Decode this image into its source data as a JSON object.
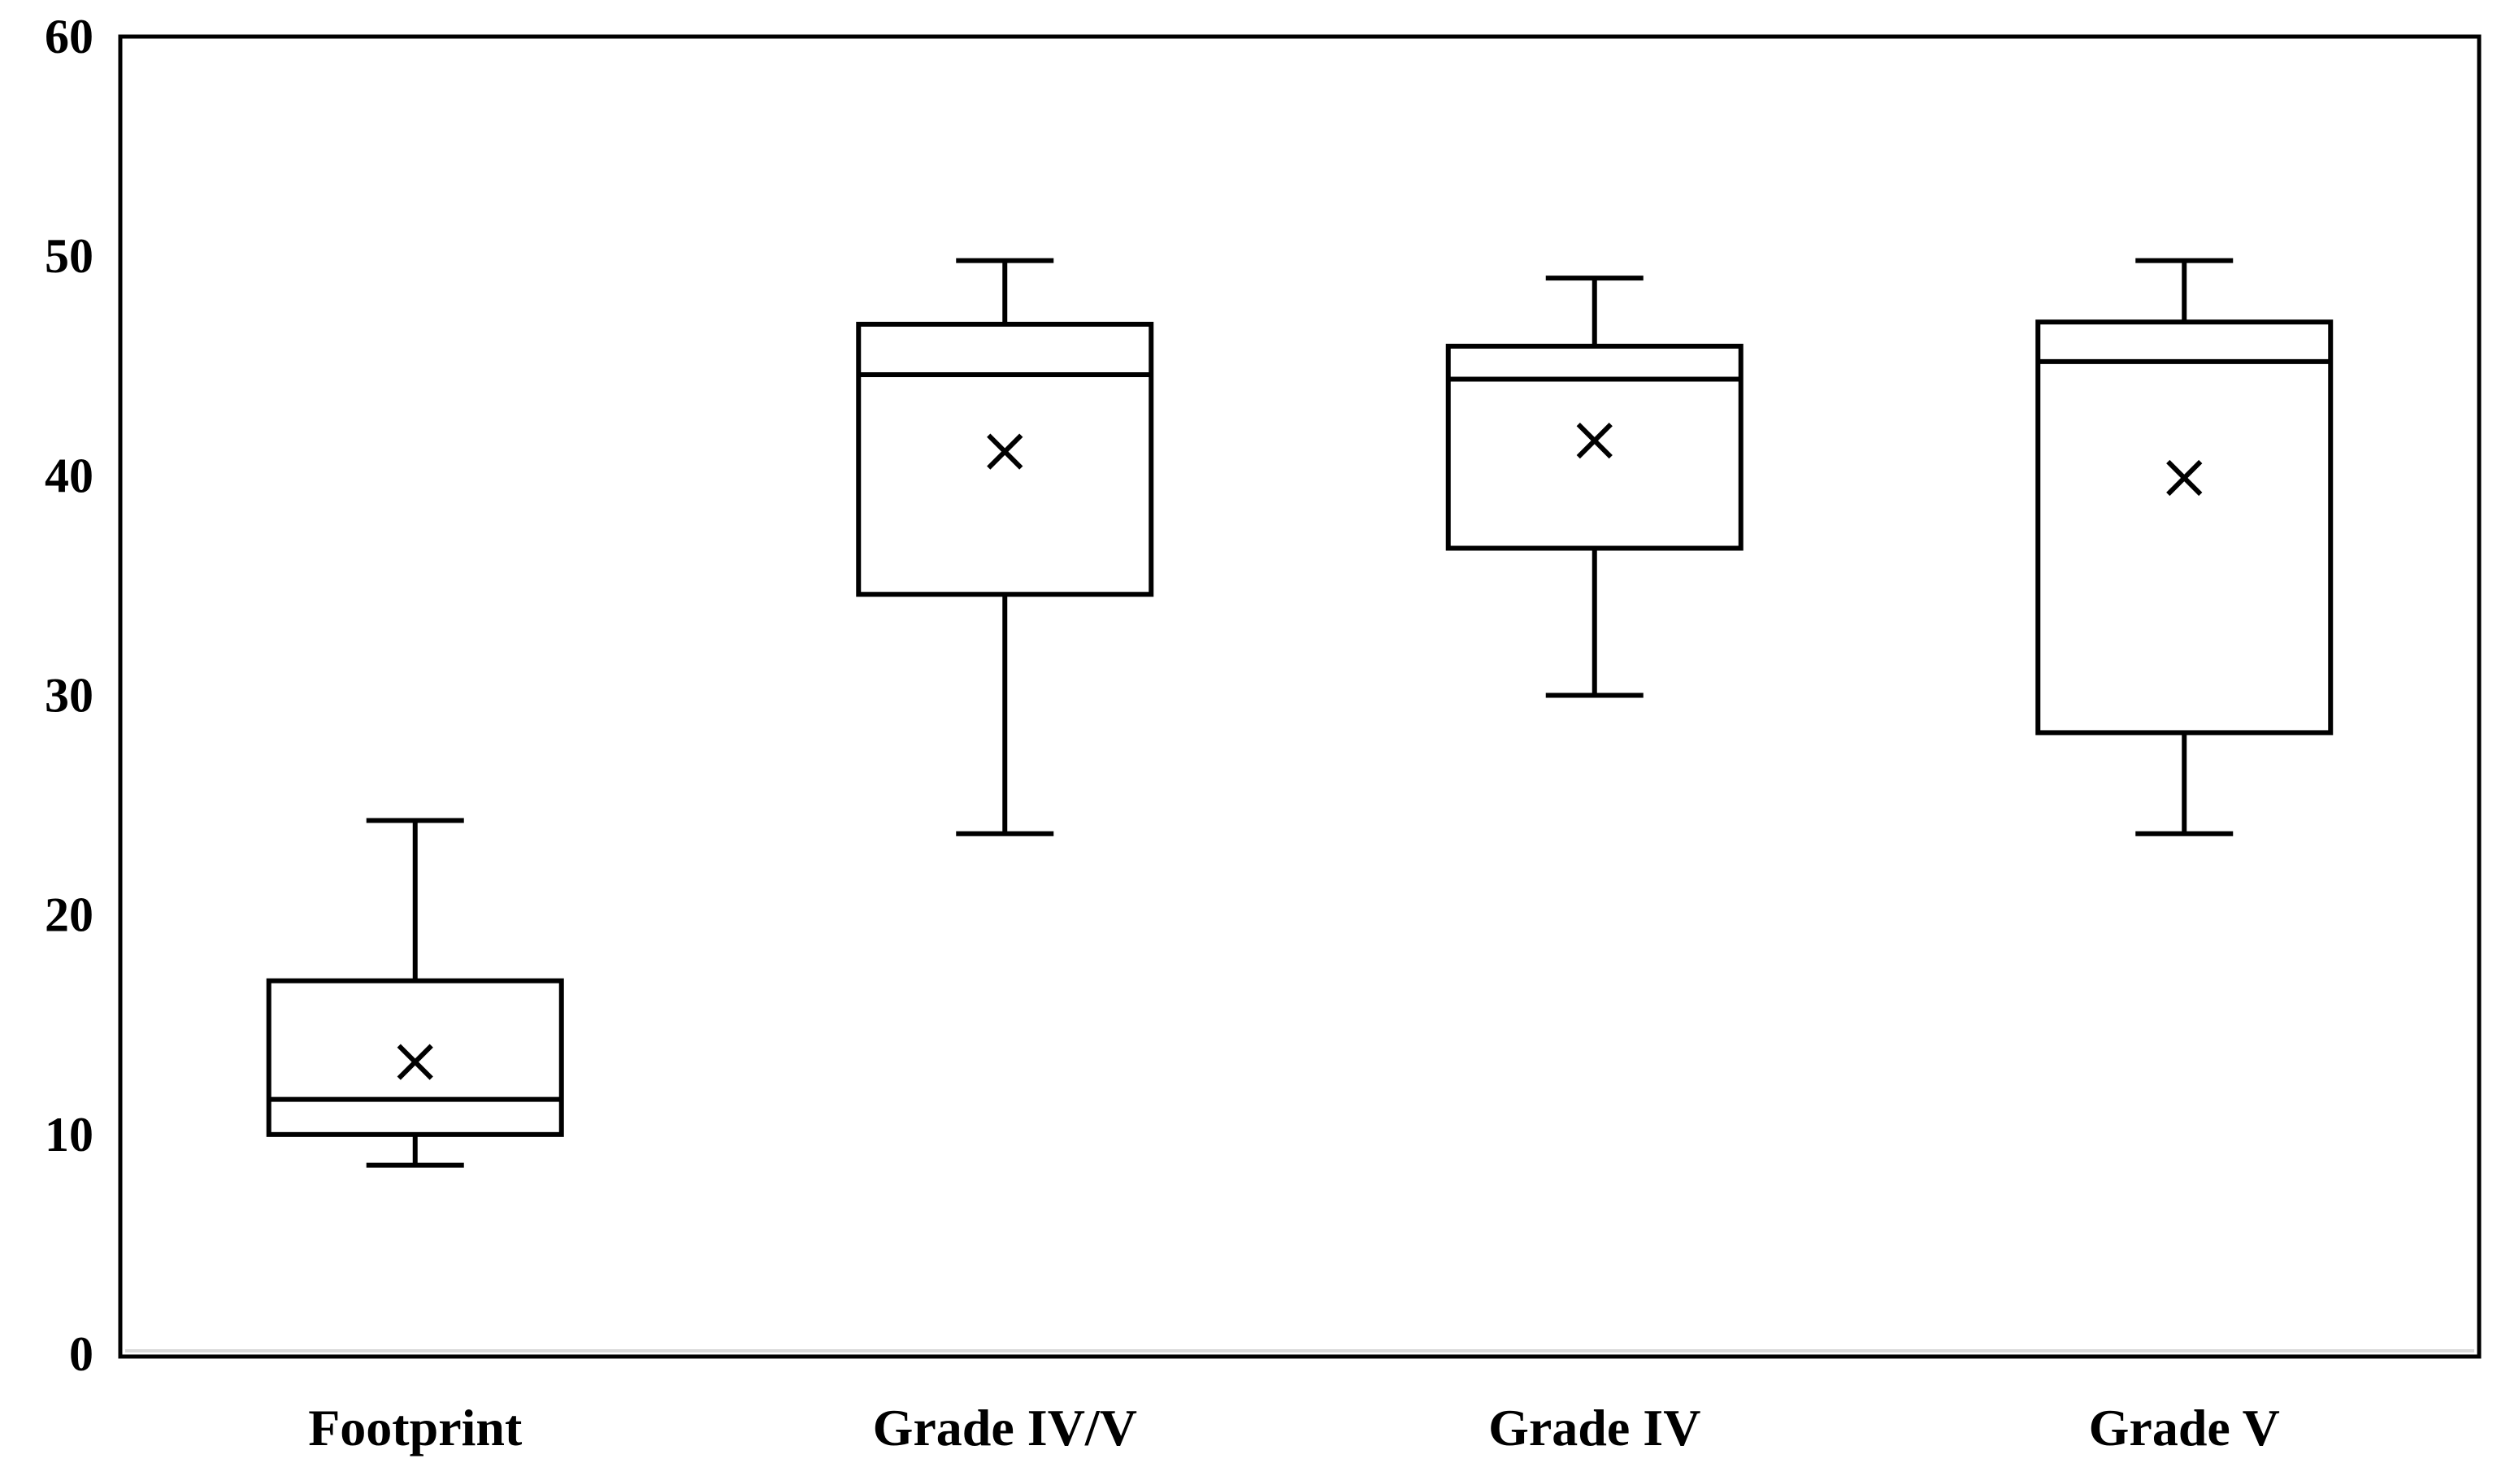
{
  "chart_data": {
    "type": "box",
    "title": "",
    "xlabel": "",
    "ylabel": "",
    "ylim": [
      0,
      60
    ],
    "yticks": [
      "0",
      "10",
      "20",
      "30",
      "40",
      "50",
      "60"
    ],
    "grid": false,
    "categories": [
      "Footprint",
      "Grade IV/V",
      "Grade IV",
      "Grade V"
    ],
    "boxes": [
      {
        "min": 8.6,
        "q1": 10.0,
        "median": 11.6,
        "q3": 17.0,
        "max": 24.3,
        "mean": 13.3
      },
      {
        "min": 23.7,
        "q1": 34.6,
        "median": 44.6,
        "q3": 46.9,
        "max": 49.8,
        "mean": 41.1
      },
      {
        "min": 30.0,
        "q1": 36.7,
        "median": 44.4,
        "q3": 45.9,
        "max": 49.0,
        "mean": 41.6
      },
      {
        "min": 23.7,
        "q1": 28.3,
        "median": 45.2,
        "q3": 47.0,
        "max": 49.8,
        "mean": 39.9
      }
    ],
    "colors": {
      "stroke": "#000000",
      "plot_border": "#000000",
      "baseline": "#d9d9d9"
    }
  }
}
